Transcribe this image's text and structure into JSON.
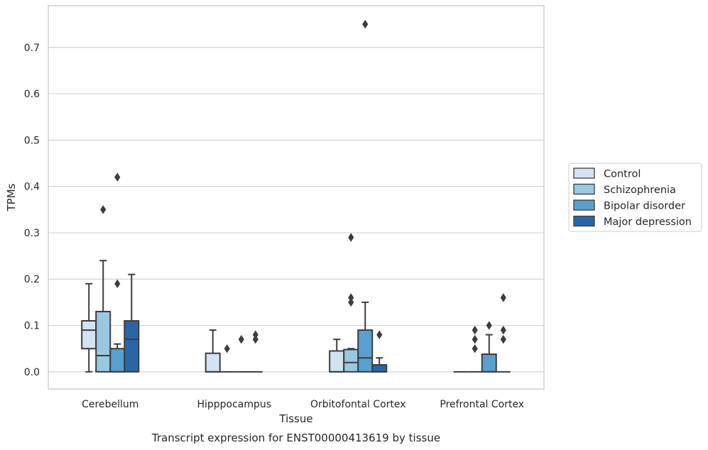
{
  "chart_data": {
    "type": "box",
    "title": "",
    "caption": "Transcript expression for ENST00000413619 by tissue",
    "xlabel": "Tissue",
    "ylabel": "TPMs",
    "ylim": [
      -0.037,
      0.79
    ],
    "yticks": [
      0.0,
      0.1,
      0.2,
      0.3,
      0.4,
      0.5,
      0.6,
      0.7
    ],
    "ytick_labels": [
      "0.0",
      "0.1",
      "0.2",
      "0.3",
      "0.4",
      "0.5",
      "0.6",
      "0.7"
    ],
    "grid": "horizontal",
    "legend_position": "right",
    "categories": [
      "Cerebellum",
      "Hipppocampus",
      "Orbitofontal Cortex",
      "Prefrontal Cortex"
    ],
    "series": [
      {
        "name": "Control",
        "color": "#d2e3f3",
        "boxes": [
          {
            "whislo": 0.0,
            "q1": 0.05,
            "med": 0.09,
            "q3": 0.11,
            "whishi": 0.19,
            "fliers": []
          },
          {
            "whislo": 0.0,
            "q1": 0.0,
            "med": 0.0,
            "q3": 0.04,
            "whishi": 0.09,
            "fliers": []
          },
          {
            "whislo": 0.0,
            "q1": 0.0,
            "med": 0.0,
            "q3": 0.045,
            "whishi": 0.07,
            "fliers": []
          },
          {
            "whislo": 0.0,
            "q1": 0.0,
            "med": 0.0,
            "q3": 0.0,
            "whishi": 0.0,
            "fliers": []
          }
        ]
      },
      {
        "name": "Schizophrenia",
        "color": "#9ac8e0",
        "boxes": [
          {
            "whislo": 0.0,
            "q1": 0.0,
            "med": 0.035,
            "q3": 0.13,
            "whishi": 0.24,
            "fliers": [
              0.35
            ]
          },
          {
            "whislo": 0.0,
            "q1": 0.0,
            "med": 0.0,
            "q3": 0.0,
            "whishi": 0.0,
            "fliers": [
              0.05
            ]
          },
          {
            "whislo": 0.0,
            "q1": 0.0,
            "med": 0.02,
            "q3": 0.048,
            "whishi": 0.05,
            "fliers": [
              0.16,
              0.15,
              0.29
            ]
          },
          {
            "whislo": 0.0,
            "q1": 0.0,
            "med": 0.0,
            "q3": 0.0,
            "whishi": 0.0,
            "fliers": [
              0.09,
              0.07,
              0.05
            ]
          }
        ]
      },
      {
        "name": "Bipolar disorder",
        "color": "#5a9fcd",
        "boxes": [
          {
            "whislo": 0.0,
            "q1": 0.0,
            "med": 0.0,
            "q3": 0.05,
            "whishi": 0.06,
            "fliers": [
              0.19,
              0.42
            ]
          },
          {
            "whislo": 0.0,
            "q1": 0.0,
            "med": 0.0,
            "q3": 0.0,
            "whishi": 0.0,
            "fliers": [
              0.07
            ]
          },
          {
            "whislo": 0.0,
            "q1": 0.0,
            "med": 0.03,
            "q3": 0.09,
            "whishi": 0.15,
            "fliers": [
              0.75
            ]
          },
          {
            "whislo": 0.0,
            "q1": 0.0,
            "med": 0.0,
            "q3": 0.038,
            "whishi": 0.08,
            "fliers": [
              0.1
            ]
          }
        ]
      },
      {
        "name": "Major depression",
        "color": "#2966a6",
        "boxes": [
          {
            "whislo": 0.0,
            "q1": 0.0,
            "med": 0.07,
            "q3": 0.11,
            "whishi": 0.21,
            "fliers": []
          },
          {
            "whislo": 0.0,
            "q1": 0.0,
            "med": 0.0,
            "q3": 0.0,
            "whishi": 0.0,
            "fliers": [
              0.08,
              0.07
            ]
          },
          {
            "whislo": 0.0,
            "q1": 0.0,
            "med": 0.0,
            "q3": 0.015,
            "whishi": 0.03,
            "fliers": [
              0.08
            ]
          },
          {
            "whislo": 0.0,
            "q1": 0.0,
            "med": 0.0,
            "q3": 0.0,
            "whishi": 0.0,
            "fliers": [
              0.16,
              0.09,
              0.07
            ]
          }
        ]
      }
    ]
  }
}
